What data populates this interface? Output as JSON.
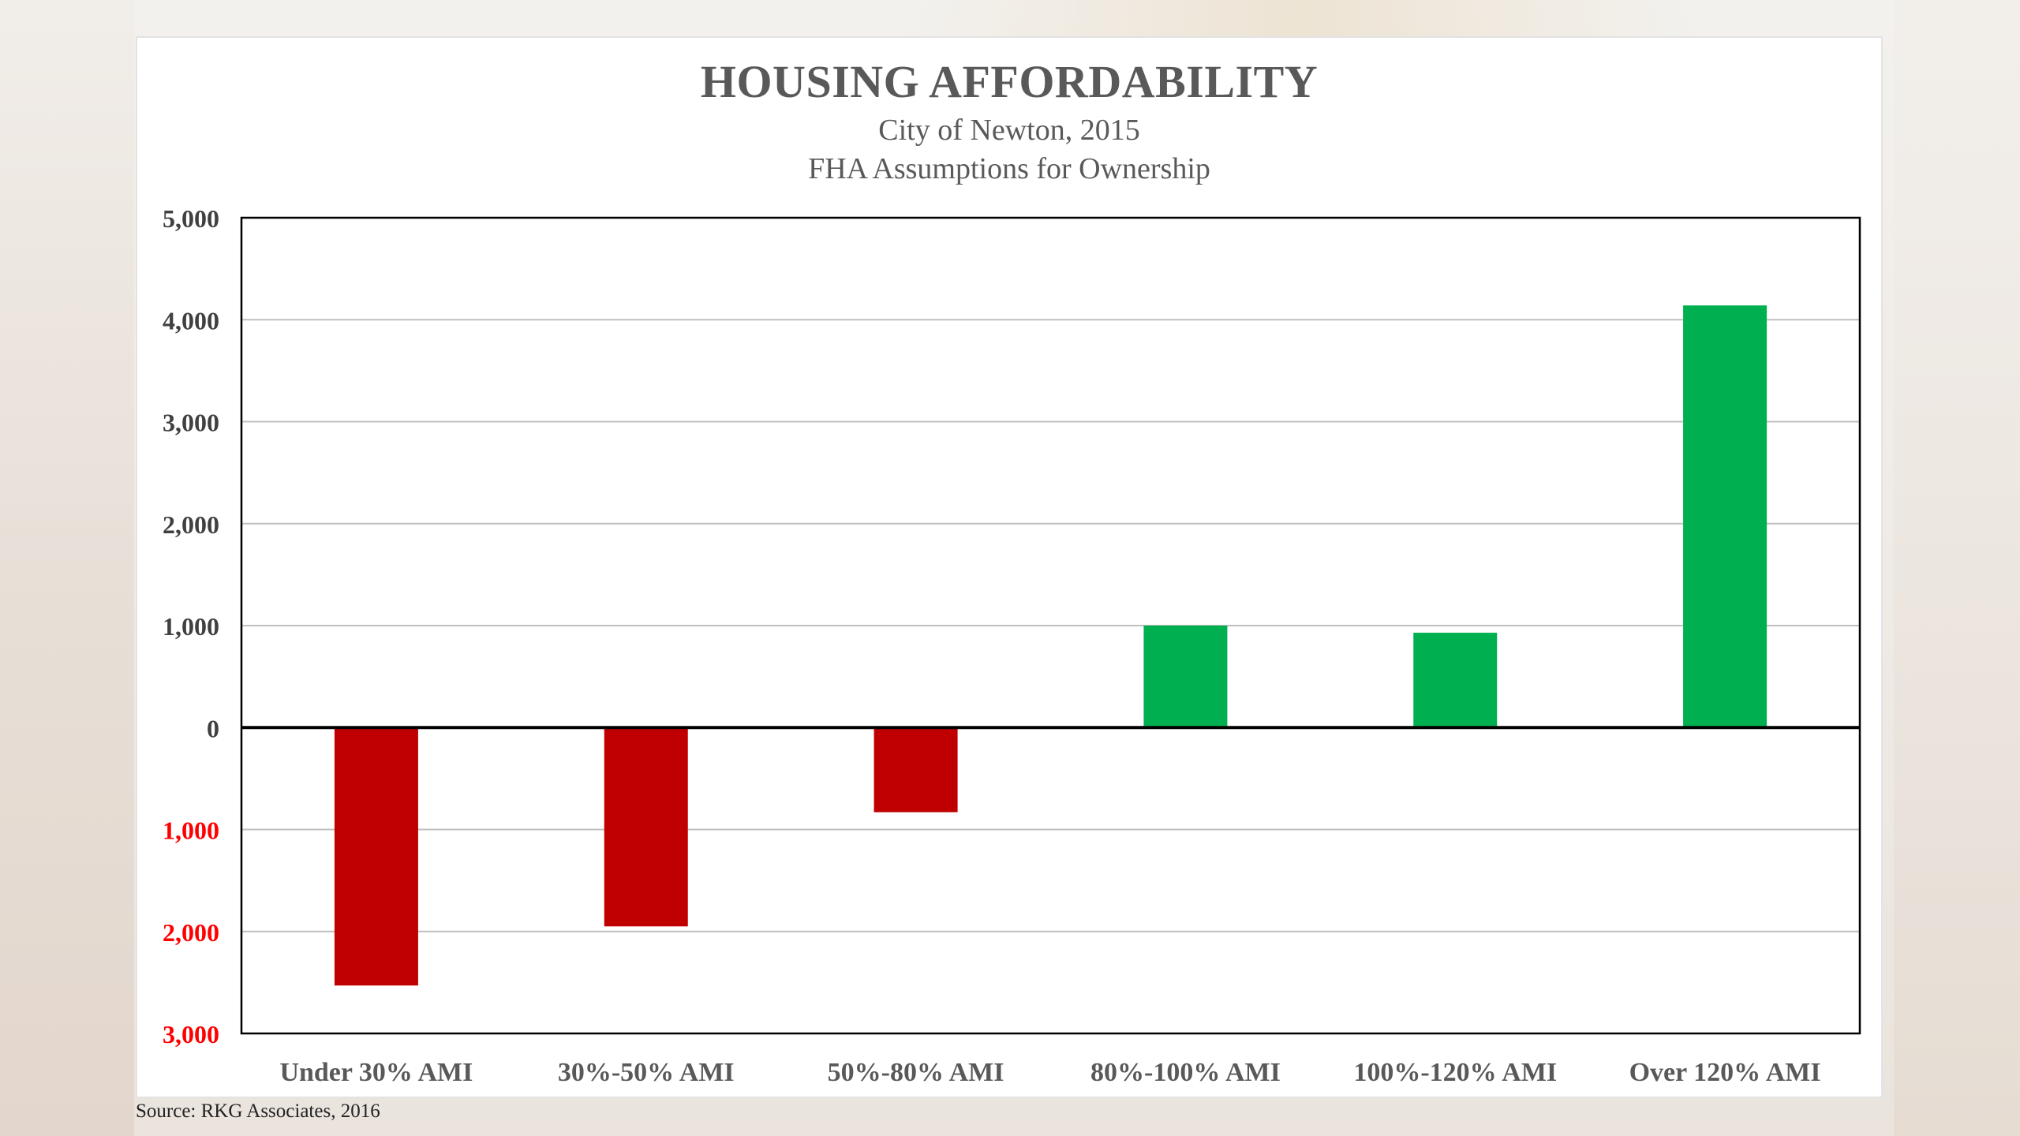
{
  "chart_data": {
    "type": "bar",
    "title": "HOUSING AFFORDABILITY",
    "subtitle": [
      "City of Newton, 2015",
      "FHA Assumptions  for Ownership"
    ],
    "categories": [
      "Under 30% AMI",
      "30%-50% AMI",
      "50%-80% AMI",
      "80%-100% AMI",
      "100%-120% AMI",
      "Over 120% AMI"
    ],
    "values": [
      -2530,
      -1950,
      -830,
      1000,
      930,
      4140
    ],
    "ylim": [
      -3000,
      5000
    ],
    "y_ticks": [
      5000,
      4000,
      3000,
      2000,
      1000,
      0,
      -1000,
      -2000,
      -3000
    ],
    "y_tick_labels": [
      "5,000",
      "4,000",
      "3,000",
      "2,000",
      "1,000",
      "0",
      "1,000",
      "2,000",
      "3,000"
    ],
    "xlabel": "",
    "ylabel": "",
    "grid": true,
    "legend": "none",
    "colors": {
      "positive": "#00b050",
      "negative": "#c00000",
      "negative_tick_label": "#ff0000",
      "positive_tick_label": "#404040",
      "grid": "#bfbfbf",
      "axis": "#000000",
      "category_label": "#595959"
    }
  },
  "source": "Source:  RKG Associates, 2016"
}
